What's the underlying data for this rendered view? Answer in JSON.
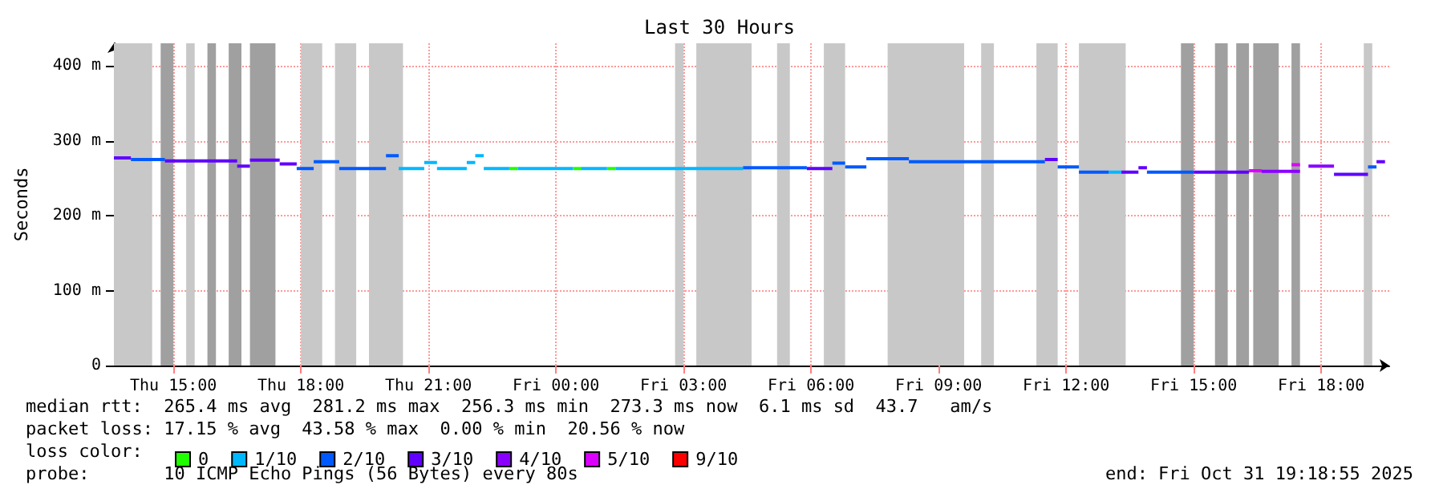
{
  "chart_data": {
    "type": "line",
    "title": "Last 30 Hours",
    "ylabel": "Seconds",
    "legend_title": "loss color:",
    "xlim": [
      "2025-10-30T13:36",
      "2025-10-31T19:36"
    ],
    "xticks": [
      {
        "value": "2025-10-30T15:00",
        "label": "Thu 15:00"
      },
      {
        "value": "2025-10-30T18:00",
        "label": "Thu 18:00"
      },
      {
        "value": "2025-10-30T21:00",
        "label": "Thu 21:00"
      },
      {
        "value": "2025-10-31T00:00",
        "label": "Fri 00:00"
      },
      {
        "value": "2025-10-31T03:00",
        "label": "Fri 03:00"
      },
      {
        "value": "2025-10-31T06:00",
        "label": "Fri 06:00"
      },
      {
        "value": "2025-10-31T09:00",
        "label": "Fri 09:00"
      },
      {
        "value": "2025-10-31T12:00",
        "label": "Fri 12:00"
      },
      {
        "value": "2025-10-31T15:00",
        "label": "Fri 15:00"
      },
      {
        "value": "2025-10-31T18:00",
        "label": "Fri 18:00"
      }
    ],
    "ylim": [
      0,
      430
    ],
    "yticks": [
      0,
      {
        "value": 100,
        "label": "100 m"
      },
      {
        "value": 200,
        "label": "200 m"
      },
      {
        "value": 300,
        "label": "300 m"
      },
      {
        "value": 400,
        "label": "400 m"
      }
    ],
    "grid": true,
    "legend": "bottom",
    "marker": "none",
    "line_style": "solid",
    "series": [
      {
        "name": "0",
        "color": "#20ff00",
        "x": [
          "2025-10-30T22:54",
          "2025-10-30T23:06",
          null,
          "2025-10-31T00:24",
          "2025-10-31T00:36",
          null,
          "2025-10-31T01:12",
          "2025-10-31T01:24"
        ],
        "values": [
          263,
          263,
          null,
          263,
          263,
          null,
          263,
          263
        ]
      },
      {
        "name": "1/10",
        "color": "#00b8ff",
        "x": [
          "2025-10-30T20:18",
          "2025-10-30T20:54",
          null,
          "2025-10-30T20:54",
          "2025-10-30T21:12",
          null,
          "2025-10-30T21:12",
          "2025-10-30T21:54",
          null,
          "2025-10-30T21:54",
          "2025-10-30T22:06",
          null,
          "2025-10-30T22:06",
          "2025-10-30T22:18",
          null,
          "2025-10-30T22:18",
          "2025-10-30T22:54",
          null,
          "2025-10-30T23:06",
          "2025-10-31T00:24",
          null,
          "2025-10-31T00:36",
          "2025-10-31T01:12",
          null,
          "2025-10-31T01:24",
          "2025-10-31T04:24",
          null,
          "2025-10-31T13:00",
          "2025-10-31T13:18"
        ],
        "values": [
          263,
          263,
          null,
          271,
          271,
          null,
          263,
          263,
          null,
          271,
          271,
          null,
          280,
          280,
          null,
          263,
          263,
          null,
          263,
          263,
          null,
          263,
          263,
          null,
          263,
          263,
          null,
          258,
          258
        ]
      },
      {
        "name": "2/10",
        "color": "#0059ff",
        "x": [
          "2025-10-30T14:00",
          "2025-10-30T14:48",
          null,
          "2025-10-30T17:54",
          "2025-10-30T18:18",
          null,
          "2025-10-30T18:18",
          "2025-10-30T18:54",
          null,
          "2025-10-30T18:54",
          "2025-10-30T20:00",
          null,
          "2025-10-30T20:00",
          "2025-10-30T20:18",
          null,
          "2025-10-31T04:24",
          "2025-10-31T05:54",
          null,
          "2025-10-31T06:30",
          "2025-10-31T06:48",
          null,
          "2025-10-31T06:48",
          "2025-10-31T07:18",
          null,
          "2025-10-31T07:18",
          "2025-10-31T08:18",
          null,
          "2025-10-31T08:18",
          "2025-10-31T11:30",
          null,
          "2025-10-31T11:48",
          "2025-10-31T12:18",
          null,
          "2025-10-31T12:18",
          "2025-10-31T13:00",
          null,
          "2025-10-31T13:54",
          "2025-10-31T15:00",
          null,
          "2025-10-31T19:06",
          "2025-10-31T19:18"
        ],
        "values": [
          275,
          275,
          null,
          263,
          263,
          null,
          272,
          272,
          null,
          263,
          263,
          null,
          280,
          280,
          null,
          264,
          264,
          null,
          270,
          270,
          null,
          265,
          265,
          null,
          276,
          276,
          null,
          272,
          272,
          null,
          265,
          265,
          null,
          258,
          258,
          null,
          258,
          258,
          null,
          265,
          265
        ]
      },
      {
        "name": "3/10",
        "color": "#6000ff",
        "x": [
          "2025-10-30T13:36",
          "2025-10-30T14:00",
          null,
          "2025-10-30T14:48",
          "2025-10-30T16:30",
          null,
          "2025-10-30T16:30",
          "2025-10-30T16:48",
          null,
          "2025-10-30T16:48",
          "2025-10-30T17:30",
          null,
          "2025-10-30T17:30",
          "2025-10-30T17:54",
          null,
          "2025-10-31T05:54",
          "2025-10-31T06:30",
          null,
          "2025-10-31T11:30",
          "2025-10-31T11:48",
          null,
          "2025-10-31T13:18",
          "2025-10-31T13:42",
          null,
          "2025-10-31T13:42",
          "2025-10-31T13:54",
          null,
          "2025-10-31T15:00",
          "2025-10-31T16:18",
          null,
          "2025-10-31T18:18",
          "2025-10-31T19:06",
          null,
          "2025-10-31T19:18",
          "2025-10-31T19:30"
        ],
        "values": [
          277,
          277,
          null,
          273,
          273,
          null,
          266,
          266,
          null,
          274,
          274,
          null,
          269,
          269,
          null,
          263,
          263,
          null,
          275,
          275,
          null,
          258,
          258,
          null,
          264,
          264,
          null,
          258,
          258,
          null,
          255,
          255,
          null,
          272,
          272
        ]
      },
      {
        "name": "4/10",
        "color": "#8a00ff",
        "x": [
          "2025-10-31T16:36",
          "2025-10-31T17:30",
          null,
          "2025-10-31T17:42",
          "2025-10-31T18:18"
        ],
        "values": [
          259,
          259,
          null,
          266,
          266
        ]
      },
      {
        "name": "5/10",
        "color": "#dd00ff",
        "x": [
          "2025-10-31T16:18",
          "2025-10-31T16:36",
          null,
          "2025-10-31T17:18",
          "2025-10-31T17:30"
        ],
        "values": [
          260,
          260,
          null,
          268,
          268
        ]
      },
      {
        "name": "9/10",
        "color": "#ff0000"
      }
    ],
    "bands": [
      {
        "axis": "x",
        "from": "2025-10-30T13:36",
        "to": "2025-10-30T14:30",
        "color": "#c8c8c8"
      },
      {
        "axis": "x",
        "from": "2025-10-30T14:42",
        "to": "2025-10-30T15:00",
        "color": "#a0a0a0"
      },
      {
        "axis": "x",
        "from": "2025-10-30T15:18",
        "to": "2025-10-30T15:30",
        "color": "#c8c8c8"
      },
      {
        "axis": "x",
        "from": "2025-10-30T15:48",
        "to": "2025-10-30T16:00",
        "color": "#a0a0a0"
      },
      {
        "axis": "x",
        "from": "2025-10-30T16:18",
        "to": "2025-10-30T16:36",
        "color": "#a0a0a0"
      },
      {
        "axis": "x",
        "from": "2025-10-30T16:48",
        "to": "2025-10-30T17:24",
        "color": "#a0a0a0"
      },
      {
        "axis": "x",
        "from": "2025-10-30T18:00",
        "to": "2025-10-30T18:30",
        "color": "#c8c8c8"
      },
      {
        "axis": "x",
        "from": "2025-10-30T18:48",
        "to": "2025-10-30T19:18",
        "color": "#c8c8c8"
      },
      {
        "axis": "x",
        "from": "2025-10-30T19:36",
        "to": "2025-10-30T20:24",
        "color": "#c8c8c8"
      },
      {
        "axis": "x",
        "from": "2025-10-31T02:48",
        "to": "2025-10-31T03:00",
        "color": "#c8c8c8"
      },
      {
        "axis": "x",
        "from": "2025-10-31T03:18",
        "to": "2025-10-31T04:36",
        "color": "#c8c8c8"
      },
      {
        "axis": "x",
        "from": "2025-10-31T05:12",
        "to": "2025-10-31T05:30",
        "color": "#c8c8c8"
      },
      {
        "axis": "x",
        "from": "2025-10-31T06:18",
        "to": "2025-10-31T06:48",
        "color": "#c8c8c8"
      },
      {
        "axis": "x",
        "from": "2025-10-31T07:48",
        "to": "2025-10-31T09:36",
        "color": "#c8c8c8"
      },
      {
        "axis": "x",
        "from": "2025-10-31T10:00",
        "to": "2025-10-31T10:18",
        "color": "#c8c8c8"
      },
      {
        "axis": "x",
        "from": "2025-10-31T11:18",
        "to": "2025-10-31T11:48",
        "color": "#c8c8c8"
      },
      {
        "axis": "x",
        "from": "2025-10-31T12:18",
        "to": "2025-10-31T13:24",
        "color": "#c8c8c8"
      },
      {
        "axis": "x",
        "from": "2025-10-31T14:42",
        "to": "2025-10-31T15:00",
        "color": "#a0a0a0"
      },
      {
        "axis": "x",
        "from": "2025-10-31T15:30",
        "to": "2025-10-31T15:48",
        "color": "#a0a0a0"
      },
      {
        "axis": "x",
        "from": "2025-10-31T16:00",
        "to": "2025-10-31T16:18",
        "color": "#a0a0a0"
      },
      {
        "axis": "x",
        "from": "2025-10-31T16:24",
        "to": "2025-10-31T17:00",
        "color": "#a0a0a0"
      },
      {
        "axis": "x",
        "from": "2025-10-31T17:18",
        "to": "2025-10-31T17:30",
        "color": "#a0a0a0"
      },
      {
        "axis": "x",
        "from": "2025-10-31T19:00",
        "to": "2025-10-31T19:12",
        "color": "#c8c8c8"
      }
    ],
    "annotations": [
      "median rtt:  265.4 ms avg  281.2 ms max  256.3 ms min  273.3 ms now  6.1 ms sd  43.7   am/s",
      "packet loss: 17.15 % avg  43.58 % max  0.00 % min  20.56 % now",
      "probe:       10 ICMP Echo Pings (56 Bytes) every 80s",
      "end: Fri Oct 31 19:18:55 2025"
    ]
  }
}
